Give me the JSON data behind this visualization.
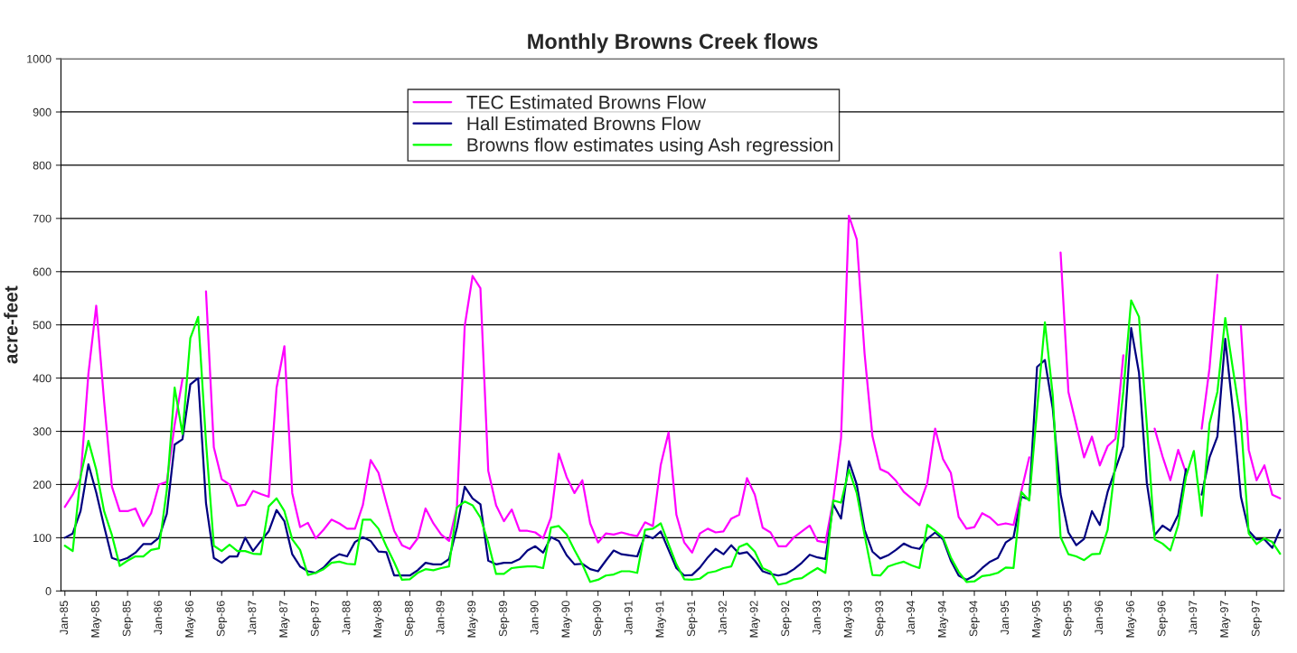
{
  "chart_data": {
    "type": "line",
    "title": "Monthly Browns Creek flows",
    "ylabel": "acre-feet",
    "categories": [
      "Jan-85",
      null,
      null,
      null,
      "May-85",
      null,
      null,
      null,
      "Sep-85",
      null,
      null,
      null,
      "Jan-86",
      null,
      null,
      null,
      "May-86",
      null,
      null,
      null,
      "Sep-86",
      null,
      null,
      null,
      "Jan-87",
      null,
      null,
      null,
      "May-87",
      null,
      null,
      null,
      "Sep-87",
      null,
      null,
      null,
      "Jan-88",
      null,
      null,
      null,
      "May-88",
      null,
      null,
      null,
      "Sep-88",
      null,
      null,
      null,
      "Jan-89",
      null,
      null,
      null,
      "May-89",
      null,
      null,
      null,
      "Sep-89",
      null,
      null,
      null,
      "Jan-90",
      null,
      null,
      null,
      "May-90",
      null,
      null,
      null,
      "Sep-90",
      null,
      null,
      null,
      "Jan-91",
      null,
      null,
      null,
      "May-91",
      null,
      null,
      null,
      "Sep-91",
      null,
      null,
      null,
      "Jan-92",
      null,
      null,
      null,
      "May-92",
      null,
      null,
      null,
      "Sep-92",
      null,
      null,
      null,
      "Jan-93",
      null,
      null,
      null,
      "May-93",
      null,
      null,
      null,
      "Sep-93",
      null,
      null,
      null,
      "Jan-94",
      null,
      null,
      null,
      "May-94",
      null,
      null,
      null,
      "Sep-94",
      null,
      null,
      null,
      "Jan-95",
      null,
      null,
      null,
      "May-95",
      null,
      null,
      null,
      "Sep-95",
      null,
      null,
      null,
      "Jan-96",
      null,
      null,
      null,
      "May-96",
      null,
      null,
      null,
      "Sep-96",
      null,
      null,
      null,
      "Jan-97",
      null,
      null,
      null,
      "May-97",
      null,
      null,
      null,
      "Sep-97",
      null,
      null,
      null
    ],
    "ylim": [
      0,
      1000
    ],
    "yticks": [
      0,
      100,
      200,
      300,
      400,
      500,
      600,
      700,
      800,
      900,
      1000
    ],
    "grid": "y",
    "legend": "top",
    "series": [
      {
        "name": "TEC Estimated Browns Flow",
        "color": "#ff00ff",
        "values": [
          158,
          181,
          212,
          408,
          536,
          357,
          196,
          150,
          150,
          155,
          122,
          146,
          200,
          205,
          312,
          398,
          null,
          null,
          563,
          270,
          210,
          200,
          160,
          162,
          188,
          182,
          177,
          382,
          460,
          184,
          120,
          128,
          99,
          115,
          134,
          127,
          117,
          117,
          161,
          246,
          222,
          166,
          113,
          86,
          79,
          99,
          155,
          127,
          106,
          94,
          157,
          498,
          592,
          569,
          226,
          161,
          131,
          153,
          113,
          113,
          110,
          99,
          138,
          258,
          214,
          184,
          208,
          127,
          91,
          108,
          106,
          110,
          106,
          103,
          129,
          122,
          237,
          298,
          143,
          91,
          72,
          108,
          117,
          110,
          112,
          136,
          143,
          212,
          181,
          119,
          110,
          84,
          84,
          101,
          112,
          123,
          94,
          91,
          170,
          288,
          705,
          661,
          446,
          291,
          229,
          222,
          207,
          186,
          174,
          161,
          203,
          305,
          248,
          222,
          139,
          117,
          120,
          146,
          138,
          124,
          127,
          124,
          188,
          251,
          null,
          null,
          null,
          636,
          374,
          312,
          251,
          290,
          236,
          272,
          286,
          443,
          null,
          null,
          null,
          305,
          253,
          208,
          265,
          222,
          null,
          305,
          419,
          594,
          null,
          null,
          498,
          265,
          208,
          236,
          181,
          174
        ]
      },
      {
        "name": "Hall Estimated Browns Flow",
        "color": "#000080",
        "values": [
          100,
          108,
          150,
          238,
          185,
          122,
          62,
          57,
          62,
          72,
          88,
          88,
          100,
          145,
          275,
          285,
          388,
          400,
          165,
          62,
          53,
          65,
          65,
          100,
          75,
          94,
          112,
          152,
          131,
          69,
          46,
          37,
          34,
          44,
          60,
          69,
          65,
          92,
          101,
          94,
          74,
          73,
          29,
          29,
          29,
          39,
          53,
          50,
          50,
          60,
          119,
          196,
          174,
          163,
          57,
          50,
          53,
          53,
          60,
          76,
          84,
          72,
          101,
          94,
          67,
          50,
          51,
          41,
          37,
          57,
          76,
          69,
          67,
          65,
          105,
          99,
          112,
          77,
          43,
          29,
          30,
          44,
          63,
          79,
          69,
          86,
          70,
          73,
          57,
          37,
          32,
          29,
          32,
          41,
          53,
          68,
          63,
          60,
          163,
          136,
          244,
          200,
          115,
          74,
          61,
          67,
          77,
          89,
          82,
          79,
          98,
          110,
          97,
          57,
          29,
          21,
          29,
          43,
          55,
          62,
          91,
          101,
          177,
          172,
          421,
          434,
          343,
          182,
          110,
          86,
          98,
          150,
          124,
          186,
          229,
          272,
          494,
          410,
          203,
          105,
          123,
          113,
          143,
          229,
          null,
          181,
          251,
          290,
          474,
          336,
          177,
          113,
          97,
          97,
          81,
          115
        ]
      },
      {
        "name": "Browns flow estimates using Ash regression",
        "color": "#00ff00",
        "values": [
          85,
          75,
          215,
          282,
          228,
          150,
          105,
          47,
          57,
          65,
          65,
          77,
          80,
          190,
          382,
          295,
          475,
          515,
          280,
          85,
          75,
          87,
          75,
          75,
          70,
          69,
          159,
          174,
          150,
          97,
          77,
          30,
          34,
          41,
          53,
          55,
          51,
          50,
          134,
          134,
          117,
          84,
          54,
          21,
          22,
          34,
          41,
          39,
          43,
          46,
          157,
          168,
          161,
          138,
          91,
          32,
          32,
          43,
          45,
          46,
          46,
          43,
          119,
          122,
          106,
          77,
          50,
          17,
          21,
          29,
          31,
          37,
          37,
          34,
          115,
          117,
          127,
          88,
          50,
          22,
          21,
          23,
          34,
          37,
          43,
          46,
          83,
          89,
          74,
          43,
          36,
          12,
          15,
          22,
          24,
          34,
          43,
          34,
          170,
          166,
          228,
          184,
          105,
          30,
          29,
          46,
          51,
          55,
          48,
          43,
          124,
          113,
          101,
          63,
          36,
          17,
          18,
          28,
          30,
          34,
          44,
          43,
          186,
          170,
          341,
          505,
          368,
          101,
          69,
          65,
          58,
          69,
          70,
          115,
          240,
          374,
          546,
          515,
          312,
          97,
          89,
          76,
          124,
          215,
          263,
          141,
          315,
          374,
          513,
          415,
          319,
          108,
          88,
          99,
          92,
          70
        ]
      }
    ]
  }
}
